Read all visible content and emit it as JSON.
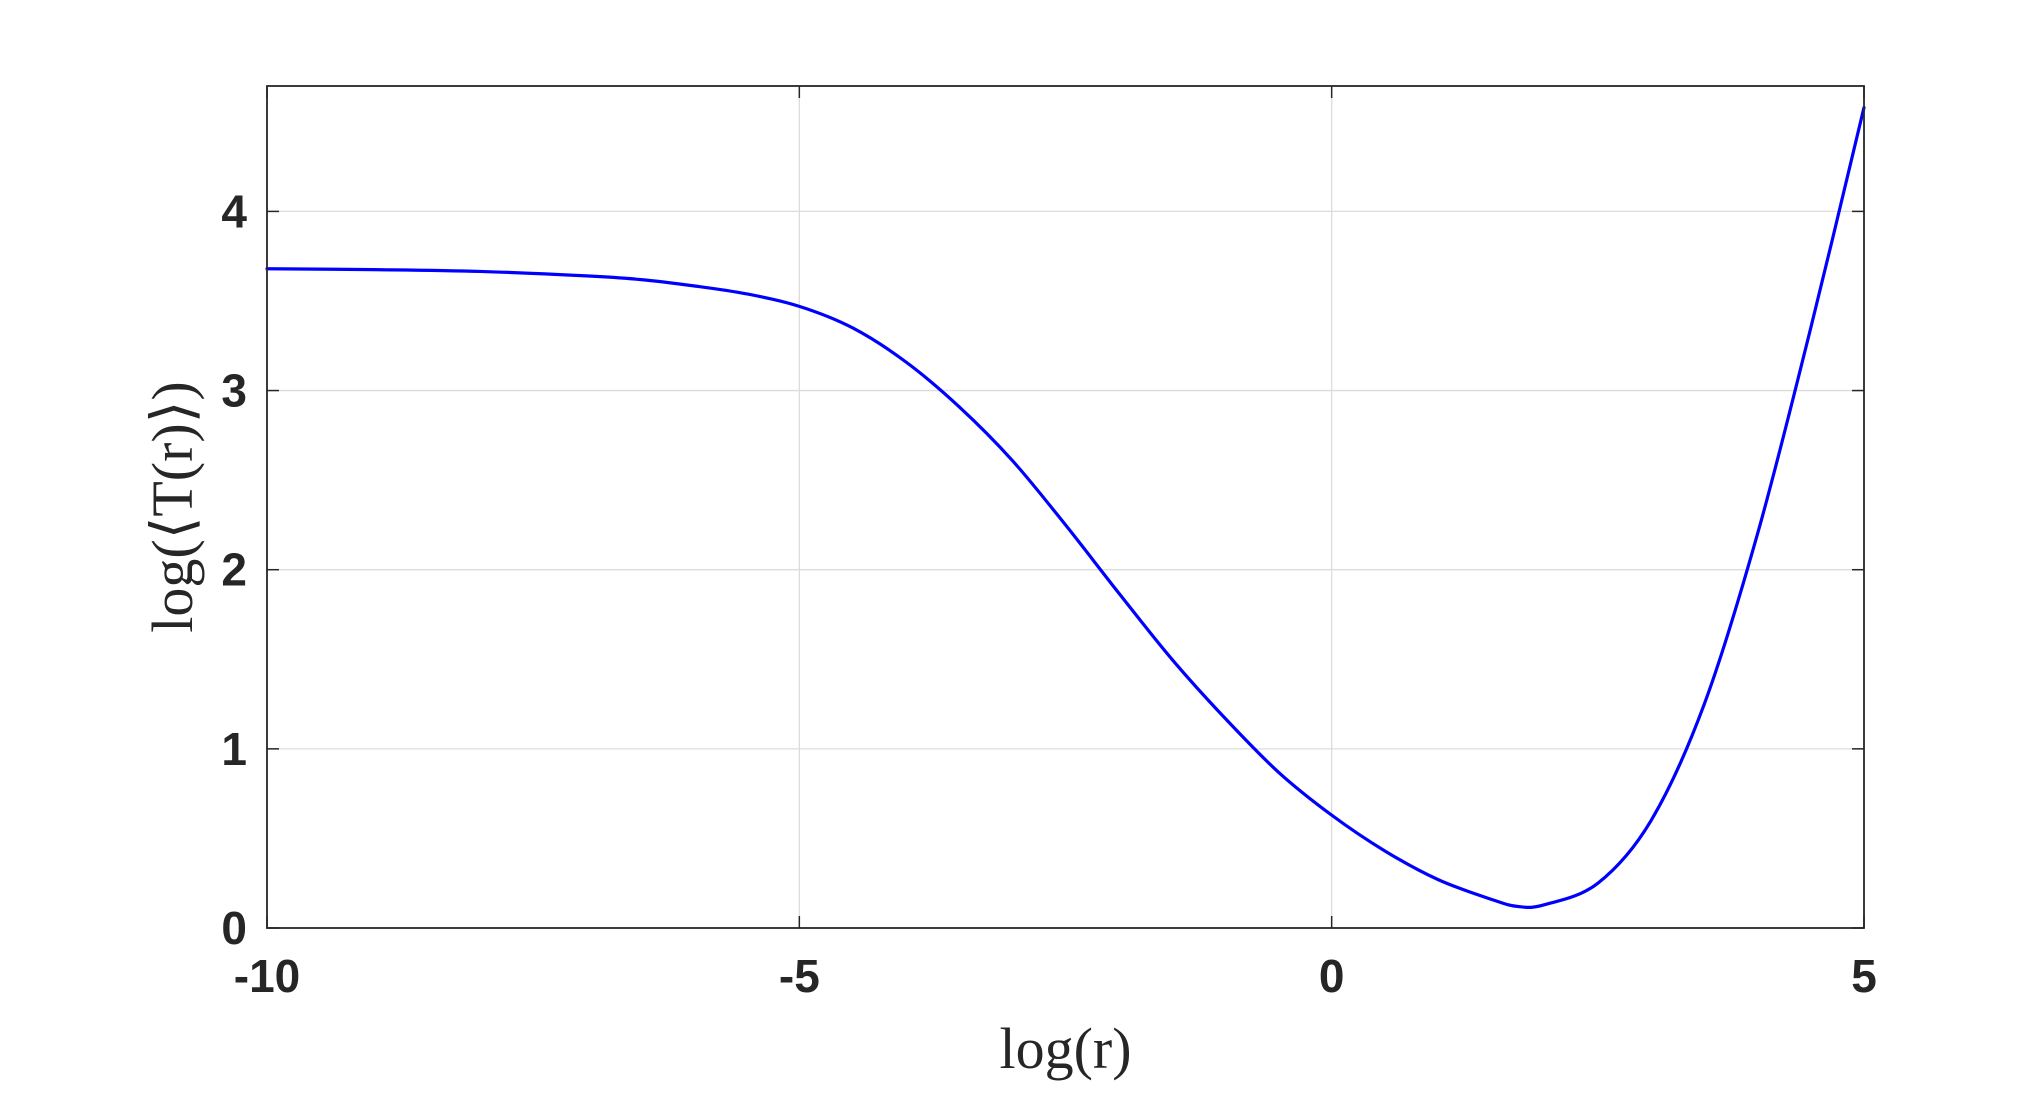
{
  "chart_data": {
    "type": "line",
    "xlabel": "log(r)",
    "ylabel": "log(⟨T(r)⟩)",
    "xlim": [
      -10,
      5
    ],
    "ylim": [
      0,
      4.7
    ],
    "xticks": [
      -10,
      -5,
      0,
      5
    ],
    "yticks": [
      0,
      1,
      2,
      3,
      4
    ],
    "xtick_labels": [
      "-10",
      "-5",
      "0",
      "5"
    ],
    "ytick_labels": [
      "0",
      "1",
      "2",
      "3",
      "4"
    ],
    "grid": true,
    "legend": "none",
    "series": [
      {
        "color": "#0000ff",
        "x": [
          -10,
          -9,
          -8,
          -7,
          -6.5,
          -6,
          -5.5,
          -5,
          -4.5,
          -4,
          -3.5,
          -3,
          -2.5,
          -2,
          -1.5,
          -1,
          -0.5,
          0,
          0.5,
          1,
          1.5,
          1.75,
          2,
          2.5,
          3,
          3.5,
          4,
          4.5,
          5
        ],
        "y": [
          3.68,
          3.675,
          3.665,
          3.64,
          3.62,
          3.585,
          3.54,
          3.47,
          3.35,
          3.16,
          2.91,
          2.61,
          2.25,
          1.87,
          1.5,
          1.17,
          0.87,
          0.63,
          0.43,
          0.27,
          0.16,
          0.12,
          0.13,
          0.25,
          0.6,
          1.25,
          2.2,
          3.35,
          4.58
        ]
      }
    ]
  }
}
